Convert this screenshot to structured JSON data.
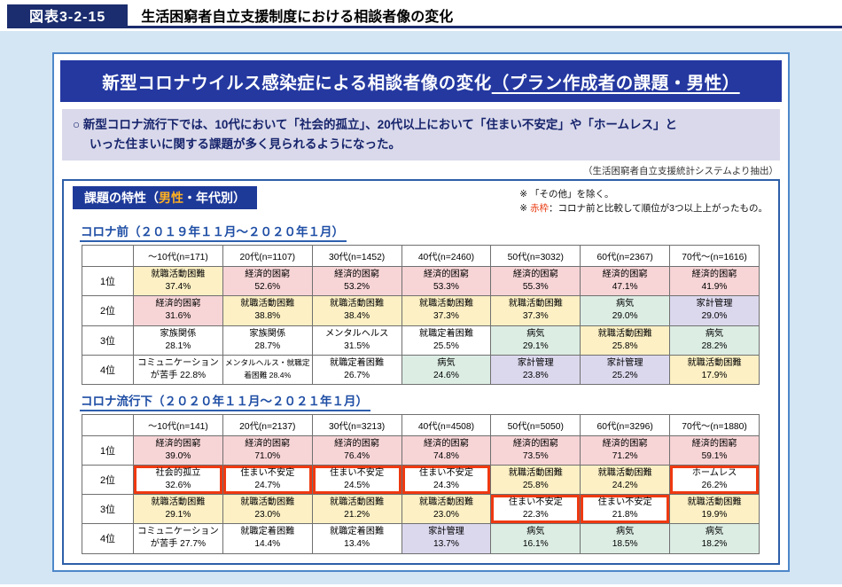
{
  "header": {
    "label": "図表3-2-15",
    "title": "生活困窮者自立支援制度における相談者像の変化"
  },
  "panel": {
    "title_main": "新型コロナウイルス感染症による相談者像の変化",
    "title_sub": "（プラン作成者の課題・男性）",
    "summary_line1": "○ 新型コロナ流行下では、10代において「社会的孤立」、20代以上において「住まい不安定」や「ホームレス」と",
    "summary_line2": "いった住まいに関する課題が多く見られるようになった。",
    "source_note": "（生活困窮者自立支援統計システムより抽出）"
  },
  "detail": {
    "badge": {
      "prefix": "課題の特性（",
      "highlight": "男性",
      "suffix": "・年代別）"
    },
    "notes": {
      "note1": "※ 「その他」を除く。",
      "note2_prefix": "※ ",
      "note2_red": "赤枠",
      "note2_rest": "：コロナ前と比較して順位が3つ以上上がったもの。"
    }
  },
  "colors": {
    "economic_pink": "#f7d4d6",
    "jobhunt_yellow": "#fcf0c4",
    "illness_green": "#dcede4",
    "budget_lavender": "#dbd8ee",
    "red_frame": "#ef3911",
    "header_blue": "#2438a0",
    "accent_navy": "#1b2d6e",
    "badge_highlight_orange": "#ffb020"
  },
  "tables": [
    {
      "title": "コロナ前（２０１９年１１月～２０２０年１月）",
      "columns": [
        "～10代(n=171)",
        "20代(n=1107)",
        "30代(n=1452)",
        "40代(n=2460)",
        "50代(n=3032)",
        "60代(n=2367)",
        "70代～(n=1616)"
      ],
      "rows": [
        {
          "rank": "1位",
          "cells": [
            {
              "t": "就職活動困難\n37.4%",
              "c": "y"
            },
            {
              "t": "経済的困窮\n52.6%",
              "c": "p"
            },
            {
              "t": "経済的困窮\n53.2%",
              "c": "p"
            },
            {
              "t": "経済的困窮\n53.3%",
              "c": "p"
            },
            {
              "t": "経済的困窮\n55.3%",
              "c": "p"
            },
            {
              "t": "経済的困窮\n47.1%",
              "c": "p"
            },
            {
              "t": "経済的困窮\n41.9%",
              "c": "p"
            }
          ]
        },
        {
          "rank": "2位",
          "cells": [
            {
              "t": "経済的困窮\n31.6%",
              "c": "p"
            },
            {
              "t": "就職活動困難\n38.8%",
              "c": "y"
            },
            {
              "t": "就職活動困難\n38.4%",
              "c": "y"
            },
            {
              "t": "就職活動困難\n37.3%",
              "c": "y"
            },
            {
              "t": "就職活動困難\n37.3%",
              "c": "y"
            },
            {
              "t": "病気\n29.0%",
              "c": "g"
            },
            {
              "t": "家計管理\n29.0%",
              "c": "v"
            }
          ]
        },
        {
          "rank": "3位",
          "cells": [
            {
              "t": "家族関係\n28.1%",
              "c": "w"
            },
            {
              "t": "家族関係\n28.7%",
              "c": "w"
            },
            {
              "t": "メンタルヘルス\n31.5%",
              "c": "w"
            },
            {
              "t": "就職定着困難\n25.5%",
              "c": "w"
            },
            {
              "t": "病気\n29.1%",
              "c": "g"
            },
            {
              "t": "就職活動困難\n25.8%",
              "c": "y"
            },
            {
              "t": "病気\n28.2%",
              "c": "g"
            }
          ]
        },
        {
          "rank": "4位",
          "cells": [
            {
              "t": "コミュニケーション\nが苦手 22.8%",
              "c": "w"
            },
            {
              "t": "メンタルヘルス・就職定\n着困難 28.4%",
              "c": "w",
              "s": 1
            },
            {
              "t": "就職定着困難\n26.7%",
              "c": "w"
            },
            {
              "t": "病気\n24.6%",
              "c": "g"
            },
            {
              "t": "家計管理\n23.8%",
              "c": "v"
            },
            {
              "t": "家計管理\n25.2%",
              "c": "v"
            },
            {
              "t": "就職活動困難\n17.9%",
              "c": "y"
            }
          ]
        }
      ]
    },
    {
      "title": "コロナ流行下（２０２０年１１月～２０２１年１月）",
      "columns": [
        "～10代(n=141)",
        "20代(n=2137)",
        "30代(n=3213)",
        "40代(n=4508)",
        "50代(n=5050)",
        "60代(n=3296)",
        "70代～(n=1880)"
      ],
      "rows": [
        {
          "rank": "1位",
          "cells": [
            {
              "t": "経済的困窮\n39.0%",
              "c": "p"
            },
            {
              "t": "経済的困窮\n71.0%",
              "c": "p"
            },
            {
              "t": "経済的困窮\n76.4%",
              "c": "p"
            },
            {
              "t": "経済的困窮\n74.8%",
              "c": "p"
            },
            {
              "t": "経済的困窮\n73.5%",
              "c": "p"
            },
            {
              "t": "経済的困窮\n71.2%",
              "c": "p"
            },
            {
              "t": "経済的困窮\n59.1%",
              "c": "p"
            }
          ]
        },
        {
          "rank": "2位",
          "cells": [
            {
              "t": "社会的孤立\n32.6%",
              "c": "w",
              "r": 1
            },
            {
              "t": "住まい不安定\n24.7%",
              "c": "w",
              "r": 1
            },
            {
              "t": "住まい不安定\n24.5%",
              "c": "w",
              "r": 1
            },
            {
              "t": "住まい不安定\n24.3%",
              "c": "w",
              "r": 1
            },
            {
              "t": "就職活動困難\n25.8%",
              "c": "y"
            },
            {
              "t": "就職活動困難\n24.2%",
              "c": "y"
            },
            {
              "t": "ホームレス\n26.2%",
              "c": "w",
              "r": 1
            }
          ]
        },
        {
          "rank": "3位",
          "cells": [
            {
              "t": "就職活動困難\n29.1%",
              "c": "y"
            },
            {
              "t": "就職活動困難\n23.0%",
              "c": "y"
            },
            {
              "t": "就職活動困難\n21.2%",
              "c": "y"
            },
            {
              "t": "就職活動困難\n23.0%",
              "c": "y"
            },
            {
              "t": "住まい不安定\n22.3%",
              "c": "w",
              "r": 1
            },
            {
              "t": "住まい不安定\n21.8%",
              "c": "w",
              "r": 1
            },
            {
              "t": "就職活動困難\n19.9%",
              "c": "y"
            }
          ]
        },
        {
          "rank": "4位",
          "cells": [
            {
              "t": "コミュニケーション\nが苦手 27.7%",
              "c": "w"
            },
            {
              "t": "就職定着困難\n14.4%",
              "c": "w"
            },
            {
              "t": "就職定着困難\n13.4%",
              "c": "w"
            },
            {
              "t": "家計管理\n13.7%",
              "c": "v"
            },
            {
              "t": "病気\n16.1%",
              "c": "g"
            },
            {
              "t": "病気\n18.5%",
              "c": "g"
            },
            {
              "t": "病気\n18.2%",
              "c": "g"
            }
          ]
        }
      ]
    }
  ]
}
